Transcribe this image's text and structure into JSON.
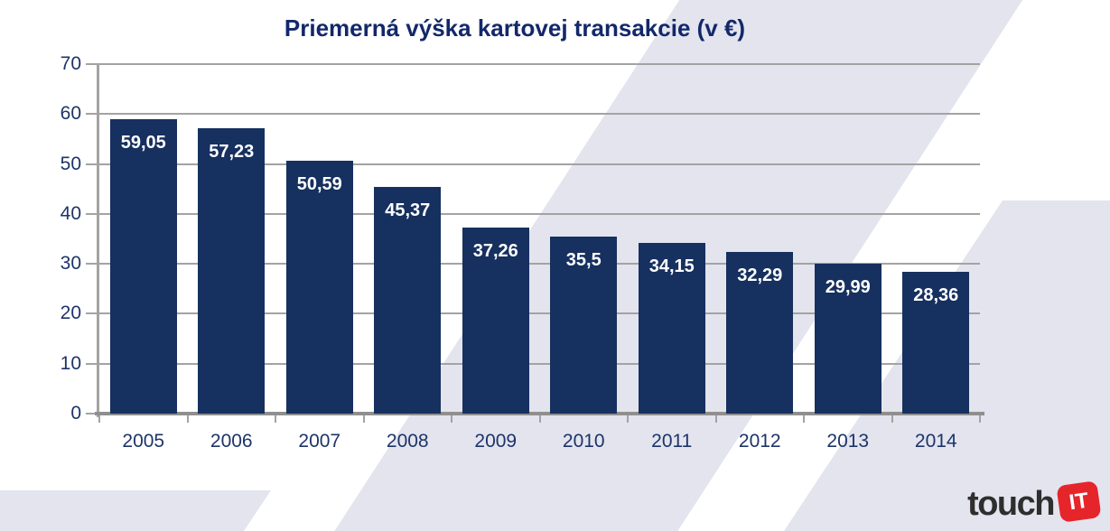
{
  "title": "Priemerná výška kartovej transakcie (v €)",
  "chart_data": {
    "type": "bar",
    "title": "Priemerná výška kartovej transakcie (v €)",
    "categories": [
      "2005",
      "2006",
      "2007",
      "2008",
      "2009",
      "2010",
      "2011",
      "2012",
      "2013",
      "2014"
    ],
    "values": [
      59.05,
      57.23,
      50.59,
      45.37,
      37.26,
      35.5,
      34.15,
      32.29,
      29.99,
      28.36
    ],
    "value_labels": [
      "59,05",
      "57,23",
      "50,59",
      "45,37",
      "37,26",
      "35,5",
      "34,15",
      "32,29",
      "29,99",
      "28,36"
    ],
    "xlabel": "",
    "ylabel": "",
    "ylim": [
      0,
      70
    ],
    "yticks": [
      0,
      10,
      20,
      30,
      40,
      50,
      60,
      70
    ],
    "grid": true,
    "legend": false,
    "bar_color": "#16305f",
    "value_label_color": "#ffffff",
    "axis_text_color": "#1d3469",
    "gridline_color": "#a3a3a3"
  },
  "logo": {
    "text": "touch",
    "badge": "IT",
    "badge_color": "#e6252b"
  },
  "colors": {
    "navy": "#16305f",
    "title_navy": "#13286b",
    "band_lavender": "#e3e4ee",
    "grid_gray": "#a3a3a3",
    "baseline_gray": "#8f8f8f",
    "logo_red": "#e6252b",
    "logo_text": "#2e2e2e",
    "background": "#ffffff"
  }
}
